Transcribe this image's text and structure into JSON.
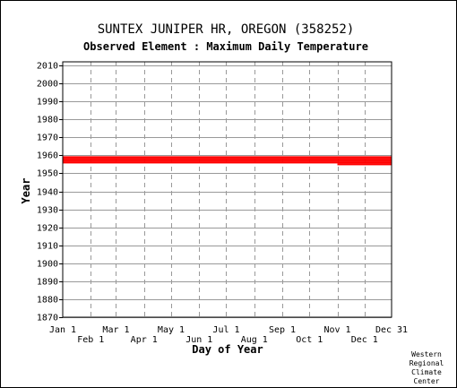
{
  "chart_data": {
    "type": "scatter",
    "title": "SUNTEX JUNIPER HR, OREGON   (358252)",
    "subtitle": "Observed Element : Maximum Daily Temperature",
    "xlabel": "Day of Year",
    "ylabel": "Year",
    "xlim": [
      1,
      365
    ],
    "ylim": [
      1870,
      2012
    ],
    "grid": true,
    "y_ticks": [
      1870,
      1880,
      1890,
      1900,
      1910,
      1920,
      1930,
      1940,
      1950,
      1960,
      1970,
      1980,
      1990,
      2000,
      2010
    ],
    "x_ticks_top_row": [
      {
        "label": "Jan 1",
        "day": 1
      },
      {
        "label": "Mar 1",
        "day": 60
      },
      {
        "label": "May 1",
        "day": 121
      },
      {
        "label": "Jul 1",
        "day": 182
      },
      {
        "label": "Sep 1",
        "day": 244
      },
      {
        "label": "Nov 1",
        "day": 305
      },
      {
        "label": "Dec 31",
        "day": 365
      }
    ],
    "x_ticks_bottom_row": [
      {
        "label": "Feb 1",
        "day": 32
      },
      {
        "label": "Apr 1",
        "day": 91
      },
      {
        "label": "Jun 1",
        "day": 152
      },
      {
        "label": "Aug 1",
        "day": 213
      },
      {
        "label": "Oct 1",
        "day": 274
      },
      {
        "label": "Dec 1",
        "day": 335
      }
    ],
    "series": [
      {
        "color": "#ff0000",
        "records": [
          {
            "year": 1959,
            "start_day": 1,
            "end_day": 365
          },
          {
            "year": 1958,
            "start_day": 1,
            "end_day": 365
          },
          {
            "year": 1957,
            "start_day": 1,
            "end_day": 365
          },
          {
            "year": 1956,
            "start_day": 1,
            "end_day": 365
          },
          {
            "year": 1955,
            "start_day": 305,
            "end_day": 365
          }
        ]
      }
    ]
  },
  "credit": [
    "Western",
    "Regional",
    "Climate",
    "Center"
  ]
}
